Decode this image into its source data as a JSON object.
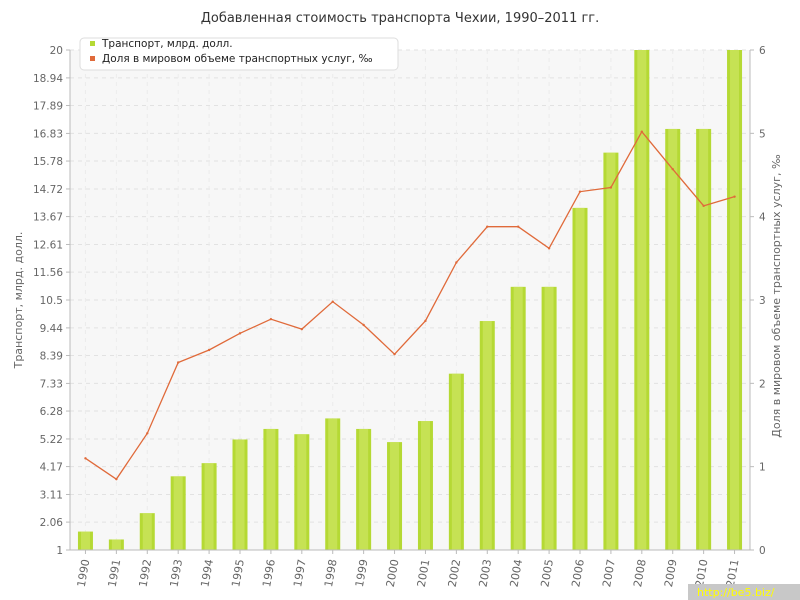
{
  "chart_data": {
    "type": "bar+line",
    "title": "Добавленная стоимость транспорта Чехии, 1990–2011 гг.",
    "x": [
      "1990",
      "1991",
      "1992",
      "1993",
      "1994",
      "1995",
      "1996",
      "1997",
      "1998",
      "1999",
      "2000",
      "2001",
      "2002",
      "2003",
      "2004",
      "2005",
      "2006",
      "2007",
      "2008",
      "2009",
      "2010",
      "2011"
    ],
    "series": [
      {
        "name": "Транспорт, млрд. долл.",
        "type": "bar",
        "axis": "left",
        "color": "#b5d934",
        "values": [
          1.7,
          1.4,
          2.4,
          3.8,
          4.3,
          5.2,
          5.6,
          5.4,
          6.0,
          5.6,
          5.1,
          5.9,
          7.7,
          9.7,
          11.0,
          11.0,
          14.0,
          16.1,
          20.0,
          17.0,
          17.0,
          20.0
        ]
      },
      {
        "name": "Доля в мировом объеме транспортных услуг, ‰",
        "type": "line",
        "axis": "right",
        "color": "#e06a3a",
        "values": [
          1.1,
          0.85,
          1.4,
          2.25,
          2.4,
          2.6,
          2.77,
          2.65,
          2.98,
          2.7,
          2.35,
          2.75,
          3.45,
          3.88,
          3.88,
          3.62,
          4.3,
          4.35,
          5.02,
          4.57,
          4.13,
          4.24
        ]
      }
    ],
    "left_axis": {
      "label": "Транспорт, млрд. долл.",
      "ticks": [
        "1",
        "2.06",
        "3.11",
        "4.17",
        "5.22",
        "6.28",
        "7.33",
        "8.39",
        "9.44",
        "10.5",
        "11.56",
        "12.61",
        "13.67",
        "14.72",
        "15.78",
        "16.83",
        "17.89",
        "18.94",
        "20"
      ],
      "ylim": [
        1,
        20
      ]
    },
    "right_axis": {
      "label": "Доля в мировом объеме транспортных услуг, ‰",
      "ticks": [
        "0",
        "1",
        "2",
        "3",
        "4",
        "5",
        "6"
      ],
      "ylim": [
        0,
        6
      ]
    },
    "legend": "top-left",
    "grid": true
  },
  "watermark": "http://be5.biz/"
}
